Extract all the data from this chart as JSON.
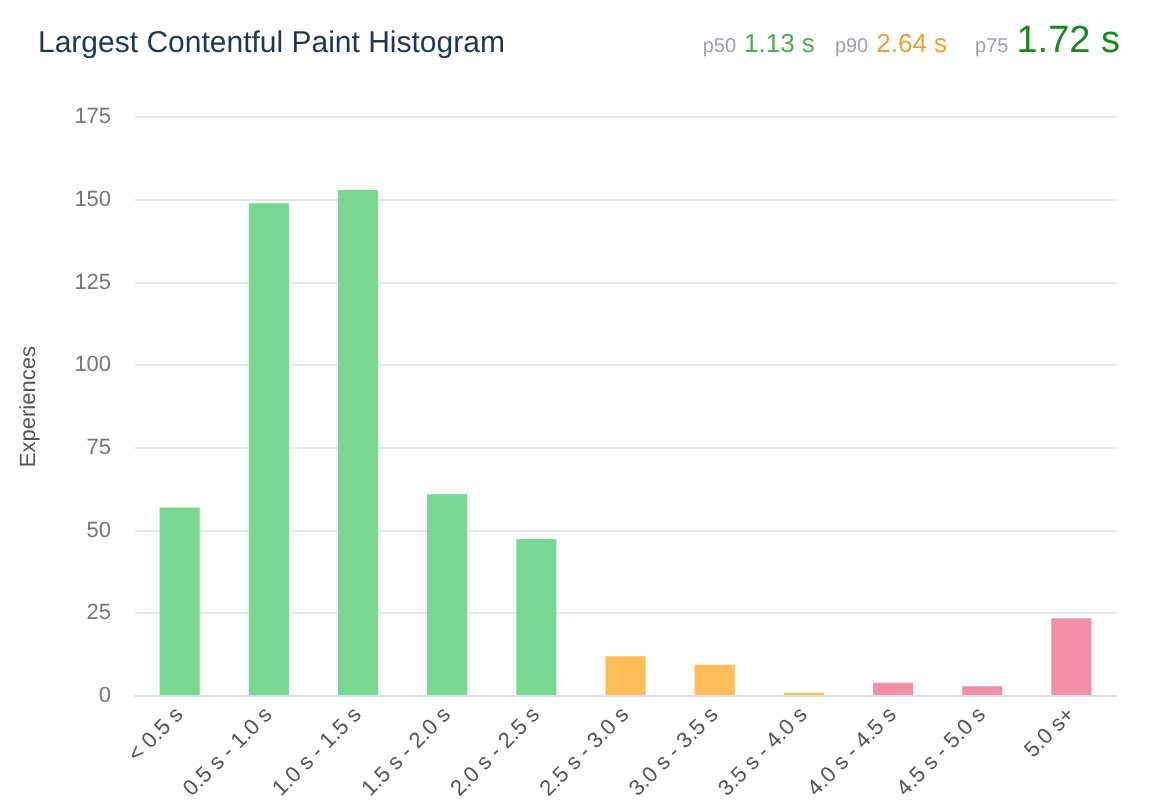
{
  "chart_data": {
    "type": "bar",
    "title": "Largest Contentful Paint Histogram",
    "ylabel": "Experiences",
    "annotations": [
      "p50",
      "1.13 s",
      "p90",
      "2.64 s",
      "p75",
      "1.72 s"
    ],
    "categories": [
      "< 0.5 s",
      "0.5 s - 1.0 s",
      "1.0 s - 1.5 s",
      "1.5 s - 2.0 s",
      "2.0 s - 2.5 s",
      "2.5 s - 3.0 s",
      "3.0 s - 3.5 s",
      "3.5 s - 4.0 s",
      "4.0 s - 4.5 s",
      "4.5 s - 5.0 s",
      "5.0 s+"
    ],
    "values": [
      57,
      149,
      153,
      61,
      47.5,
      12,
      9.5,
      1,
      4,
      3,
      23.5
    ],
    "colors": [
      "#78d88f",
      "#78d88f",
      "#78d88f",
      "#78d88f",
      "#78d88f",
      "#fdbe57",
      "#fdbe57",
      "#fdbe57",
      "#f28ea8",
      "#f28ea8",
      "#f28ea8"
    ],
    "ylim": [
      0,
      175
    ],
    "yticks": [
      0,
      25,
      50,
      75,
      100,
      125,
      150,
      175
    ],
    "grid": "y",
    "legend": false
  }
}
